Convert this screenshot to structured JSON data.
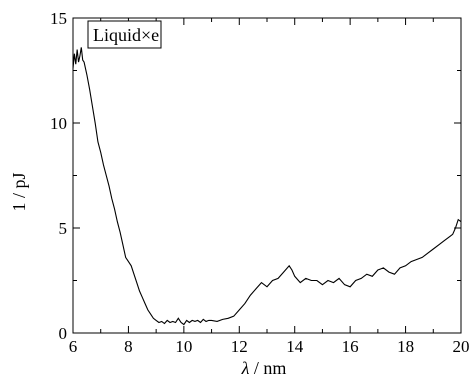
{
  "chart_data": {
    "type": "line",
    "xlabel_symbol": "λ",
    "xlabel_unit": " / nm",
    "ylabel": "1 / pJ",
    "legend": "Liquid×e",
    "xlim": [
      6,
      20
    ],
    "ylim": [
      0,
      15
    ],
    "xticks": [
      6,
      8,
      10,
      12,
      14,
      16,
      18,
      20
    ],
    "yticks": [
      0,
      5,
      10,
      15
    ],
    "series": [
      {
        "x": [
          6.0,
          6.05,
          6.1,
          6.15,
          6.2,
          6.25,
          6.3,
          6.35,
          6.4,
          6.5,
          6.6,
          6.7,
          6.8,
          6.9,
          7.0,
          7.1,
          7.2,
          7.3,
          7.4,
          7.5,
          7.6,
          7.7,
          7.8,
          7.9,
          8.0,
          8.1,
          8.2,
          8.3,
          8.4,
          8.5,
          8.6,
          8.7,
          8.8,
          8.9,
          9.0,
          9.1,
          9.2,
          9.3,
          9.4,
          9.5,
          9.6,
          9.7,
          9.8,
          9.9,
          10.0,
          10.1,
          10.2,
          10.3,
          10.4,
          10.5,
          10.6,
          10.7,
          10.8,
          10.9,
          11.0,
          11.2,
          11.4,
          11.6,
          11.8,
          12.0,
          12.2,
          12.4,
          12.6,
          12.8,
          13.0,
          13.2,
          13.4,
          13.6,
          13.8,
          13.9,
          14.0,
          14.2,
          14.4,
          14.6,
          14.8,
          15.0,
          15.2,
          15.4,
          15.6,
          15.8,
          16.0,
          16.2,
          16.4,
          16.6,
          16.8,
          17.0,
          17.2,
          17.4,
          17.6,
          17.8,
          18.0,
          18.2,
          18.4,
          18.6,
          18.8,
          19.0,
          19.2,
          19.4,
          19.6,
          19.7,
          19.8,
          19.9,
          20.0
        ],
        "y": [
          12.6,
          13.3,
          12.8,
          13.5,
          12.9,
          13.2,
          13.6,
          13.0,
          12.9,
          12.3,
          11.6,
          10.8,
          10.0,
          9.1,
          8.6,
          8.0,
          7.5,
          7.0,
          6.4,
          5.9,
          5.3,
          4.8,
          4.2,
          3.6,
          3.4,
          3.2,
          2.8,
          2.4,
          2.0,
          1.7,
          1.4,
          1.1,
          0.9,
          0.7,
          0.6,
          0.5,
          0.55,
          0.45,
          0.6,
          0.5,
          0.55,
          0.5,
          0.7,
          0.5,
          0.4,
          0.6,
          0.5,
          0.6,
          0.55,
          0.6,
          0.5,
          0.65,
          0.55,
          0.6,
          0.6,
          0.55,
          0.65,
          0.7,
          0.8,
          1.1,
          1.4,
          1.8,
          2.1,
          2.4,
          2.2,
          2.5,
          2.6,
          2.9,
          3.2,
          3.0,
          2.7,
          2.4,
          2.6,
          2.5,
          2.5,
          2.3,
          2.5,
          2.4,
          2.6,
          2.3,
          2.2,
          2.5,
          2.6,
          2.8,
          2.7,
          3.0,
          3.1,
          2.9,
          2.8,
          3.1,
          3.2,
          3.4,
          3.5,
          3.6,
          3.8,
          4.0,
          4.2,
          4.4,
          4.6,
          4.7,
          5.0,
          5.4,
          5.3
        ]
      }
    ]
  }
}
